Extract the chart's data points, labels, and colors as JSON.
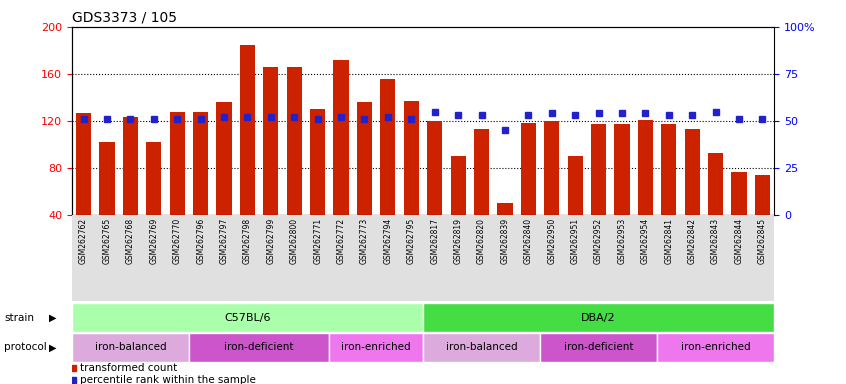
{
  "title": "GDS3373 / 105",
  "samples": [
    "GSM262762",
    "GSM262765",
    "GSM262768",
    "GSM262769",
    "GSM262770",
    "GSM262796",
    "GSM262797",
    "GSM262798",
    "GSM262799",
    "GSM262800",
    "GSM262771",
    "GSM262772",
    "GSM262773",
    "GSM262794",
    "GSM262795",
    "GSM262817",
    "GSM262819",
    "GSM262820",
    "GSM262839",
    "GSM262840",
    "GSM262950",
    "GSM262951",
    "GSM262952",
    "GSM262953",
    "GSM262954",
    "GSM262841",
    "GSM262842",
    "GSM262843",
    "GSM262844",
    "GSM262845"
  ],
  "red_values": [
    127,
    102,
    123,
    102,
    128,
    128,
    136,
    185,
    166,
    166,
    130,
    172,
    136,
    156,
    137,
    120,
    90,
    113,
    50,
    118,
    120,
    90,
    117,
    117,
    121,
    117,
    113,
    93,
    77,
    74
  ],
  "blue_percentiles": [
    51,
    51,
    51,
    51,
    51,
    51,
    52,
    52,
    52,
    52,
    51,
    52,
    51,
    52,
    51,
    55,
    53,
    53,
    45,
    53,
    54,
    53,
    54,
    54,
    54,
    53,
    53,
    55,
    51,
    51
  ],
  "strain_groups": [
    {
      "label": "C57BL/6",
      "start": 0,
      "end": 15,
      "color": "#AAFFAA"
    },
    {
      "label": "DBA/2",
      "start": 15,
      "end": 30,
      "color": "#44DD44"
    }
  ],
  "protocol_groups": [
    {
      "label": "iron-balanced",
      "start": 0,
      "end": 5,
      "color": "#DDAADD"
    },
    {
      "label": "iron-deficient",
      "start": 5,
      "end": 11,
      "color": "#CC55CC"
    },
    {
      "label": "iron-enriched",
      "start": 11,
      "end": 15,
      "color": "#EE77EE"
    },
    {
      "label": "iron-balanced",
      "start": 15,
      "end": 20,
      "color": "#DDAADD"
    },
    {
      "label": "iron-deficient",
      "start": 20,
      "end": 25,
      "color": "#CC55CC"
    },
    {
      "label": "iron-enriched",
      "start": 25,
      "end": 30,
      "color": "#EE77EE"
    }
  ],
  "ylim_left": [
    40,
    200
  ],
  "yticks_left": [
    40,
    80,
    120,
    160,
    200
  ],
  "yticks_right": [
    0,
    25,
    50,
    75,
    100
  ],
  "bar_color": "#CC2200",
  "dot_color": "#2222CC",
  "bg_color": "#FFFFFF",
  "xtick_bg": "#E0E0E0",
  "title_fontsize": 10,
  "legend_items": [
    "transformed count",
    "percentile rank within the sample"
  ]
}
